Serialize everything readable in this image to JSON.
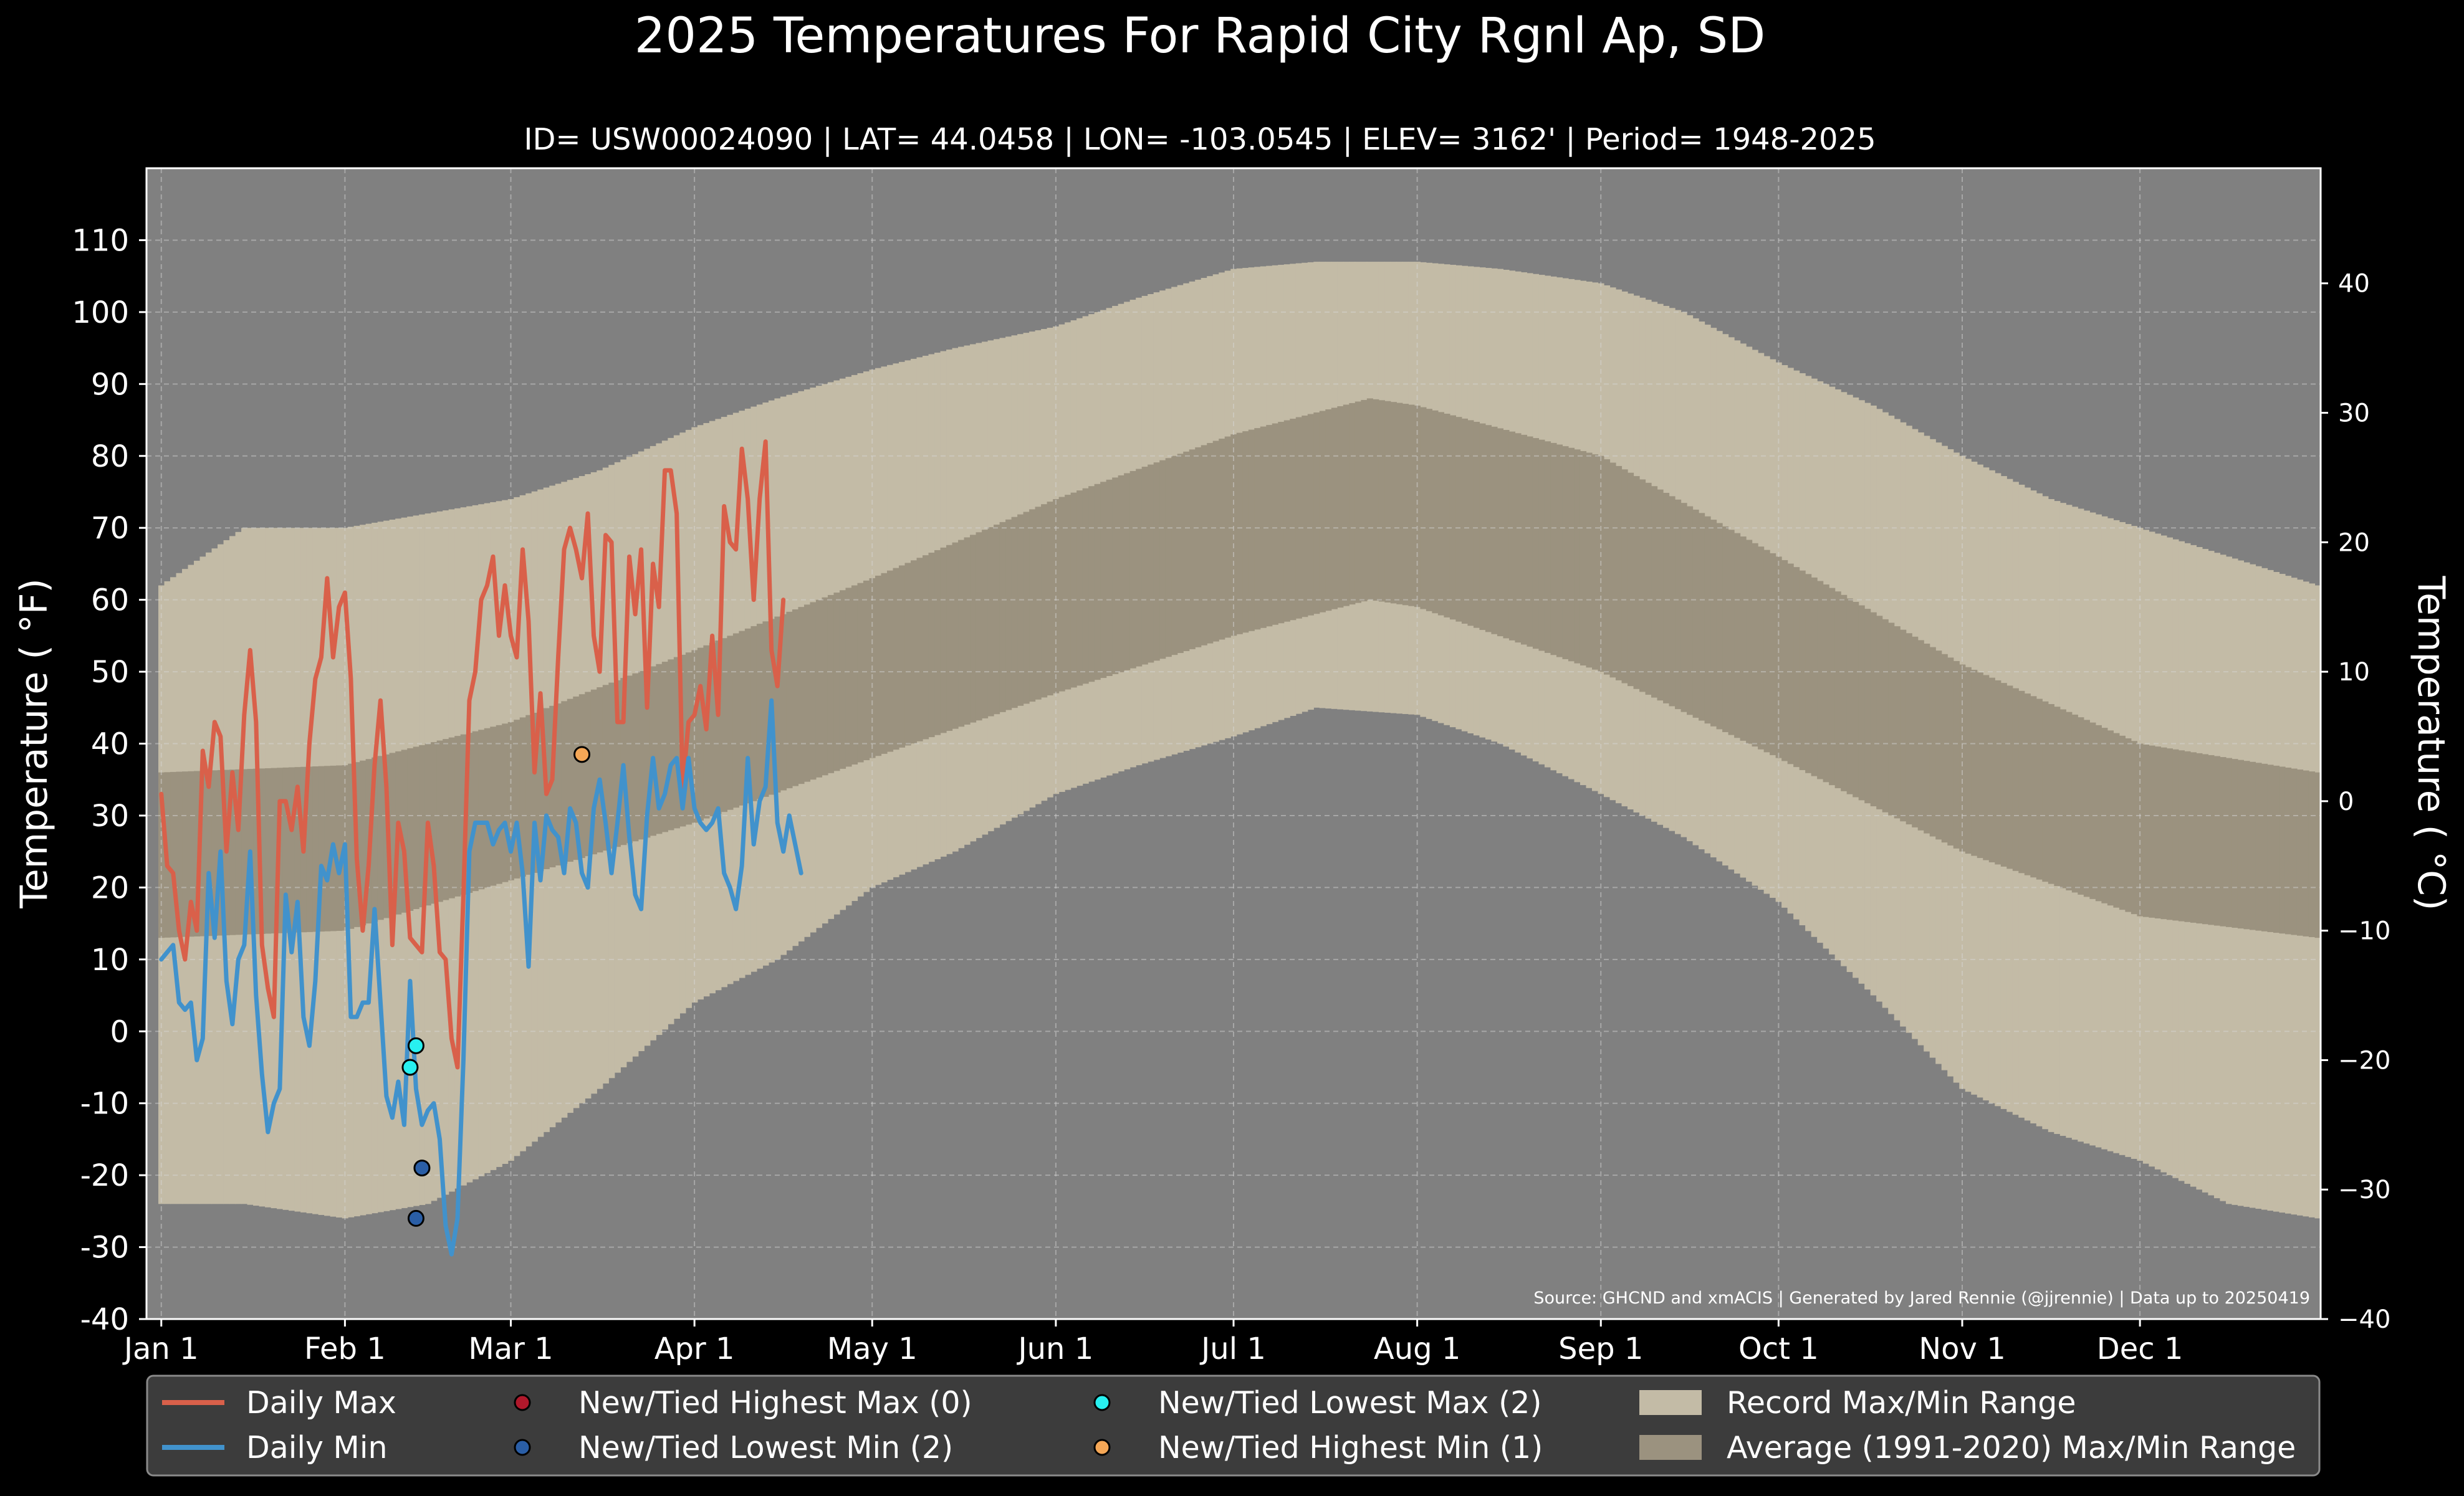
{
  "chart_data": {
    "type": "line",
    "title": "2025 Temperatures For Rapid City Rgnl Ap, SD",
    "subtitle": "ID= USW00024090 | LAT= 44.0458 | LON= -103.0545 | ELEV= 3162' | Period= 1948-2025",
    "ylabel": "Temperature ( °F)",
    "ylabel_right": "Temperature ( °C)",
    "source": "Source: GHCND and xmACIS | Generated by Jared Rennie (@jjrennie) | Data up to 20250419",
    "ylim": [
      -40,
      120
    ],
    "ylim_c": [
      -40,
      48.89
    ],
    "xlim": [
      -1.5,
      365.5
    ],
    "y_ticks": [
      "-40",
      "-30",
      "-20",
      "-10",
      "0",
      "10",
      "20",
      "30",
      "40",
      "50",
      "60",
      "70",
      "80",
      "90",
      "100",
      "110"
    ],
    "y_ticks_c": [
      "−40",
      "−30",
      "−20",
      "−10",
      "0",
      "10",
      "20",
      "30",
      "40"
    ],
    "x_ticks": [
      {
        "day": 1,
        "label": "Jan 1"
      },
      {
        "day": 32,
        "label": "Feb 1"
      },
      {
        "day": 60,
        "label": "Mar 1"
      },
      {
        "day": 91,
        "label": "Apr 1"
      },
      {
        "day": 121,
        "label": "May 1"
      },
      {
        "day": 152,
        "label": "Jun 1"
      },
      {
        "day": 182,
        "label": "Jul 1"
      },
      {
        "day": 213,
        "label": "Aug 1"
      },
      {
        "day": 244,
        "label": "Sep 1"
      },
      {
        "day": 274,
        "label": "Oct 1"
      },
      {
        "day": 305,
        "label": "Nov 1"
      },
      {
        "day": 335,
        "label": "Dec 1"
      }
    ],
    "grid": true,
    "legend_position": "bottom",
    "colors": {
      "background": "#000000",
      "plot_bg": "#808080",
      "record": "#c3bba6",
      "average": "#9b927f",
      "daily_max": "#d9604a",
      "daily_min": "#4192cc",
      "highest_max": "#b0182b",
      "lowest_min": "#2a5ea6",
      "lowest_max": "#28f0f0",
      "highest_min": "#f5a756"
    },
    "record_max": [
      {
        "day": 1,
        "value": 62
      },
      {
        "day": 15,
        "value": 70
      },
      {
        "day": 32,
        "value": 70
      },
      {
        "day": 46,
        "value": 72
      },
      {
        "day": 60,
        "value": 74
      },
      {
        "day": 75,
        "value": 78
      },
      {
        "day": 91,
        "value": 84
      },
      {
        "day": 105,
        "value": 88
      },
      {
        "day": 121,
        "value": 92
      },
      {
        "day": 135,
        "value": 95
      },
      {
        "day": 152,
        "value": 98
      },
      {
        "day": 166,
        "value": 102
      },
      {
        "day": 182,
        "value": 106
      },
      {
        "day": 196,
        "value": 107
      },
      {
        "day": 213,
        "value": 107
      },
      {
        "day": 227,
        "value": 106
      },
      {
        "day": 244,
        "value": 104
      },
      {
        "day": 258,
        "value": 100
      },
      {
        "day": 274,
        "value": 93
      },
      {
        "day": 290,
        "value": 87
      },
      {
        "day": 305,
        "value": 80
      },
      {
        "day": 320,
        "value": 74
      },
      {
        "day": 335,
        "value": 70
      },
      {
        "day": 350,
        "value": 66
      },
      {
        "day": 365,
        "value": 62
      }
    ],
    "record_min": [
      {
        "day": 1,
        "value": -24
      },
      {
        "day": 15,
        "value": -24
      },
      {
        "day": 32,
        "value": -26
      },
      {
        "day": 46,
        "value": -24
      },
      {
        "day": 60,
        "value": -18
      },
      {
        "day": 75,
        "value": -8
      },
      {
        "day": 91,
        "value": 4
      },
      {
        "day": 105,
        "value": 10
      },
      {
        "day": 121,
        "value": 20
      },
      {
        "day": 135,
        "value": 25
      },
      {
        "day": 152,
        "value": 33
      },
      {
        "day": 166,
        "value": 37
      },
      {
        "day": 182,
        "value": 41
      },
      {
        "day": 196,
        "value": 45
      },
      {
        "day": 213,
        "value": 44
      },
      {
        "day": 227,
        "value": 40
      },
      {
        "day": 244,
        "value": 33
      },
      {
        "day": 258,
        "value": 27
      },
      {
        "day": 274,
        "value": 18
      },
      {
        "day": 290,
        "value": 5
      },
      {
        "day": 305,
        "value": -8
      },
      {
        "day": 320,
        "value": -14
      },
      {
        "day": 335,
        "value": -18
      },
      {
        "day": 350,
        "value": -24
      },
      {
        "day": 365,
        "value": -26
      }
    ],
    "average_max": [
      {
        "day": 1,
        "value": 36
      },
      {
        "day": 32,
        "value": 37
      },
      {
        "day": 60,
        "value": 43
      },
      {
        "day": 91,
        "value": 53
      },
      {
        "day": 121,
        "value": 63
      },
      {
        "day": 152,
        "value": 74
      },
      {
        "day": 182,
        "value": 83
      },
      {
        "day": 205,
        "value": 88
      },
      {
        "day": 213,
        "value": 87
      },
      {
        "day": 244,
        "value": 80
      },
      {
        "day": 274,
        "value": 66
      },
      {
        "day": 305,
        "value": 51
      },
      {
        "day": 335,
        "value": 40
      },
      {
        "day": 365,
        "value": 36
      }
    ],
    "average_min": [
      {
        "day": 1,
        "value": 13
      },
      {
        "day": 32,
        "value": 14
      },
      {
        "day": 60,
        "value": 21
      },
      {
        "day": 91,
        "value": 29
      },
      {
        "day": 121,
        "value": 38
      },
      {
        "day": 152,
        "value": 47
      },
      {
        "day": 182,
        "value": 55
      },
      {
        "day": 205,
        "value": 60
      },
      {
        "day": 213,
        "value": 59
      },
      {
        "day": 244,
        "value": 50
      },
      {
        "day": 274,
        "value": 38
      },
      {
        "day": 305,
        "value": 25
      },
      {
        "day": 335,
        "value": 16
      },
      {
        "day": 365,
        "value": 13
      }
    ],
    "series": [
      {
        "name": "Daily Max",
        "start_day": 1,
        "values": [
          33,
          23,
          22,
          14,
          10,
          18,
          14,
          39,
          34,
          43,
          41,
          25,
          36,
          28,
          44,
          53,
          43,
          12,
          6,
          2,
          32,
          32,
          28,
          34,
          25,
          40,
          49,
          52,
          63,
          52,
          59,
          61,
          49,
          24,
          14,
          23,
          37,
          46,
          34,
          12,
          29,
          25,
          13,
          12,
          11,
          29,
          23,
          11,
          10,
          -1,
          -5,
          19,
          46,
          50,
          60,
          62,
          66,
          55,
          62,
          55,
          52,
          67,
          57,
          36,
          47,
          33,
          35,
          52,
          67,
          70,
          67,
          63,
          72,
          55,
          50,
          69,
          68,
          43,
          43,
          66,
          58,
          67,
          45,
          65,
          59,
          78,
          78,
          72,
          34,
          43,
          44,
          48,
          42,
          55,
          44,
          73,
          68,
          67,
          81,
          74,
          60,
          74,
          82,
          53,
          48,
          60
        ]
      },
      {
        "name": "Daily Min",
        "start_day": 1,
        "values": [
          10,
          11,
          12,
          4,
          3,
          4,
          -4,
          -1,
          22,
          13,
          25,
          7,
          1,
          10,
          12,
          25,
          5,
          -6,
          -14,
          -10,
          -8,
          19,
          11,
          18,
          2,
          -2,
          7,
          23,
          21,
          26,
          22,
          26,
          2,
          2,
          4,
          4,
          17,
          4,
          -9,
          -12,
          -7,
          -13,
          7,
          -8,
          -13,
          -11,
          -10,
          -15,
          -27,
          -31,
          -26,
          -4,
          25,
          29,
          29,
          29,
          26,
          28,
          29,
          25,
          29,
          22,
          9,
          29,
          21,
          30,
          28,
          27,
          22,
          31,
          29,
          22,
          20,
          31,
          35,
          29,
          22,
          29,
          37,
          27,
          19,
          17,
          30,
          38,
          31,
          33,
          37,
          38,
          31,
          38,
          31,
          29,
          28,
          29,
          31,
          22,
          20,
          17,
          23,
          38,
          26,
          32,
          34,
          46,
          29,
          25,
          30,
          26,
          22
        ]
      }
    ],
    "markers": [
      {
        "name": "New/Tied Lowest Max",
        "day": 43,
        "value": -5
      },
      {
        "name": "New/Tied Lowest Max",
        "day": 44,
        "value": -2
      },
      {
        "name": "New/Tied Lowest Min",
        "day": 44,
        "value": -26
      },
      {
        "name": "New/Tied Lowest Min",
        "day": 45,
        "value": -19
      },
      {
        "name": "New/Tied Highest Min",
        "day": 72,
        "value": 38.5
      }
    ],
    "legend": [
      {
        "key": "daily_max",
        "label": "Daily Max",
        "kind": "line"
      },
      {
        "key": "daily_min",
        "label": "Daily Min",
        "kind": "line"
      },
      {
        "key": "highest_max",
        "label": "New/Tied Highest Max (0)",
        "kind": "dot"
      },
      {
        "key": "lowest_min",
        "label": "New/Tied Lowest Min (2)",
        "kind": "dot"
      },
      {
        "key": "lowest_max",
        "label": "New/Tied Lowest Max (2)",
        "kind": "dot"
      },
      {
        "key": "highest_min",
        "label": "New/Tied Highest Min (1)",
        "kind": "dot"
      },
      {
        "key": "record",
        "label": "Record Max/Min Range",
        "kind": "patch"
      },
      {
        "key": "average",
        "label": "Average (1991-2020) Max/Min Range",
        "kind": "patch"
      }
    ]
  }
}
